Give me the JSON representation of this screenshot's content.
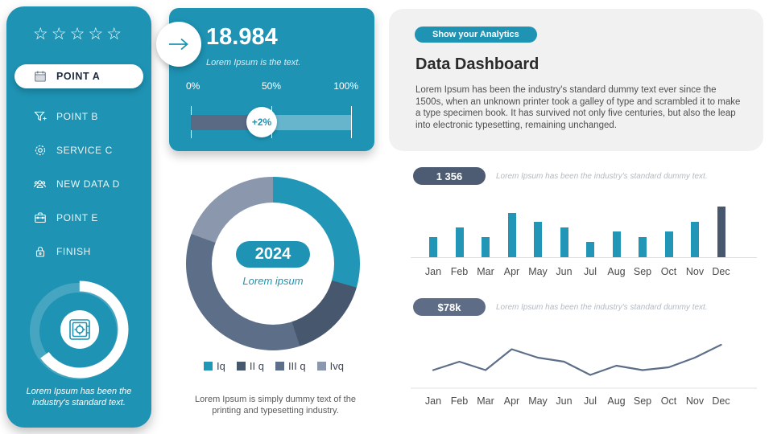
{
  "colors": {
    "teal": "#1e93b4",
    "bar_teal": "#2196b6",
    "slate_dark": "#47576d",
    "slate_mid": "#5d6e88",
    "slate_light": "#8a97ad",
    "progress_dark": "#5a6a85",
    "badge1_bg": "#4d5c73",
    "badge2_bg": "#5e6d85",
    "line_stroke": "#5d6e88"
  },
  "sidebar": {
    "rating_star": "☆",
    "rating_count": 5,
    "items": [
      {
        "label": "POINT A",
        "icon": "calendar",
        "active": true
      },
      {
        "label": "POINT B",
        "icon": "filter",
        "active": false
      },
      {
        "label": "SERVICE C",
        "icon": "gear",
        "active": false
      },
      {
        "label": "NEW DATA D",
        "icon": "users",
        "active": false
      },
      {
        "label": "POINT E",
        "icon": "briefcase",
        "active": false
      },
      {
        "label": "FINISH",
        "icon": "lock",
        "active": false
      }
    ],
    "footer_icon": "safe",
    "footer_note": "Lorem Ipsum has been the industry's standard text."
  },
  "kpi_card": {
    "icon": "arrow-right",
    "value": "18.984",
    "caption": "Lorem Ipsum is the text.",
    "scale_labels": [
      "0%",
      "50%",
      "100%"
    ],
    "progress_badge": "+2%",
    "progress_fill_percent": 44
  },
  "donut_card": {
    "center_value": "2024",
    "center_caption": "Lorem ipsum",
    "caption": "Lorem Ipsum is simply dummy text of the printing and typesetting  industry."
  },
  "analytics": {
    "badge": "Show your Analytics",
    "title": "Data Dashboard",
    "description": "Lorem Ipsum has been the industry's standard  dummy text ever since the 1500s, when an unknown printer took a galley of type and scrambled it to make a  type specimen book. It has survived not only five centuries, but also the leap into electronic typesetting, remaining unchanged."
  },
  "stat_rows": [
    {
      "badge": "1 356",
      "caption": "Lorem Ipsum has been the industry's standard dummy text."
    },
    {
      "badge": "$78k",
      "caption": "Lorem Ipsum has been the industry's standard dummy text."
    }
  ],
  "chart_data": [
    {
      "type": "pie",
      "subtype": "donut",
      "title": "2024",
      "labels": [
        "Iq",
        "II q",
        "III q",
        "Ivq"
      ],
      "values_percent": [
        29,
        16,
        36,
        19
      ],
      "segment_angles_deg": [
        0,
        106,
        162,
        290,
        360
      ],
      "colors": [
        "#2196b6",
        "#47576d",
        "#5d6e88",
        "#8a97ad"
      ],
      "center_label": "2024",
      "legend_position": "bottom"
    },
    {
      "type": "bar",
      "categories": [
        "Jan",
        "Feb",
        "Mar",
        "Apr",
        "May",
        "Jun",
        "Jul",
        "Aug",
        "Sep",
        "Oct",
        "Nov",
        "Dec"
      ],
      "values": [
        39,
        58,
        39,
        88,
        70,
        58,
        30,
        50,
        39,
        50,
        70,
        100
      ],
      "ylim": [
        0,
        100
      ],
      "unit": "relative height, no y-axis shown",
      "bar_color": "#2196b6",
      "highlight_index": 11,
      "highlight_color": "#47576d",
      "grid": false,
      "baseline": true
    },
    {
      "type": "line",
      "categories": [
        "Jan",
        "Feb",
        "Mar",
        "Apr",
        "May",
        "Jun",
        "Jul",
        "Aug",
        "Sep",
        "Oct",
        "Nov",
        "Dec"
      ],
      "values": [
        37,
        58,
        37,
        89,
        68,
        58,
        25,
        48,
        37,
        44,
        68,
        100
      ],
      "ylim": [
        0,
        100
      ],
      "unit": "relative height, no y-axis shown",
      "line_color": "#5d6e88",
      "grid": false,
      "baseline": true
    }
  ]
}
